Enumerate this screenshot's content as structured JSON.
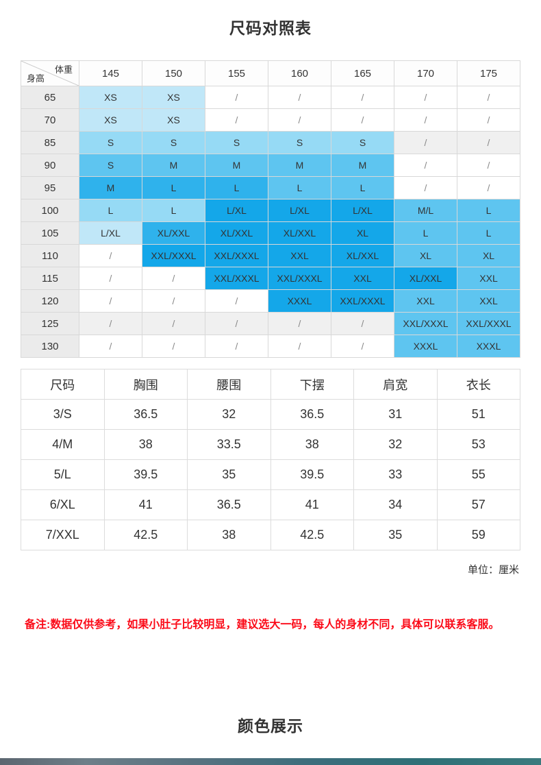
{
  "page": {
    "title1": "尺码对照表",
    "title2": "颜色展示",
    "unit_note": "单位：厘米",
    "remark": "备注:数据仅供参考，如果小肚子比较明显，建议选大一码，每人的身材不同，具体可以联系客服。"
  },
  "colors": {
    "w": "#ffffff",
    "g": "#f0f0f0",
    "b1": "#c0e7f8",
    "b2": "#96daf5",
    "b3": "#5ec5f0",
    "b4": "#2fb2ec",
    "b5": "#14a7e9",
    "remark_red": "#fb0a18"
  },
  "size_matrix": {
    "corner": {
      "top_right": "体重",
      "bottom_left": "身高"
    },
    "weight_headers": [
      "145",
      "150",
      "155",
      "160",
      "165",
      "170",
      "175"
    ],
    "rows": [
      {
        "h": "65",
        "cells": [
          [
            "XS",
            "b1"
          ],
          [
            "XS",
            "b1"
          ],
          [
            "/",
            "w"
          ],
          [
            "/",
            "w"
          ],
          [
            "/",
            "w"
          ],
          [
            "/",
            "w"
          ],
          [
            "/",
            "w"
          ]
        ]
      },
      {
        "h": "70",
        "cells": [
          [
            "XS",
            "b1"
          ],
          [
            "XS",
            "b1"
          ],
          [
            "/",
            "w"
          ],
          [
            "/",
            "w"
          ],
          [
            "/",
            "w"
          ],
          [
            "/",
            "w"
          ],
          [
            "/",
            "w"
          ]
        ]
      },
      {
        "h": "85",
        "cells": [
          [
            "S",
            "b2"
          ],
          [
            "S",
            "b2"
          ],
          [
            "S",
            "b2"
          ],
          [
            "S",
            "b2"
          ],
          [
            "S",
            "b2"
          ],
          [
            "/",
            "g"
          ],
          [
            "/",
            "g"
          ]
        ]
      },
      {
        "h": "90",
        "cells": [
          [
            "S",
            "b3"
          ],
          [
            "M",
            "b3"
          ],
          [
            "M",
            "b3"
          ],
          [
            "M",
            "b3"
          ],
          [
            "M",
            "b3"
          ],
          [
            "/",
            "w"
          ],
          [
            "/",
            "w"
          ]
        ]
      },
      {
        "h": "95",
        "cells": [
          [
            "M",
            "b4"
          ],
          [
            "L",
            "b4"
          ],
          [
            "L",
            "b4"
          ],
          [
            "L",
            "b3"
          ],
          [
            "L",
            "b3"
          ],
          [
            "/",
            "w"
          ],
          [
            "/",
            "w"
          ]
        ]
      },
      {
        "h": "100",
        "cells": [
          [
            "L",
            "b2"
          ],
          [
            "L",
            "b2"
          ],
          [
            "L/XL",
            "b5"
          ],
          [
            "L/XL",
            "b5"
          ],
          [
            "L/XL",
            "b5"
          ],
          [
            "M/L",
            "b3"
          ],
          [
            "L",
            "b3"
          ]
        ]
      },
      {
        "h": "105",
        "cells": [
          [
            "L/XL",
            "b1"
          ],
          [
            "XL/XXL",
            "b4"
          ],
          [
            "XL/XXL",
            "b5"
          ],
          [
            "XL/XXL",
            "b5"
          ],
          [
            "XL",
            "b5"
          ],
          [
            "L",
            "b3"
          ],
          [
            "L",
            "b3"
          ]
        ]
      },
      {
        "h": "110",
        "cells": [
          [
            "/",
            "w"
          ],
          [
            "XXL/XXXL",
            "b5"
          ],
          [
            "XXL/XXXL",
            "b5"
          ],
          [
            "XXL",
            "b5"
          ],
          [
            "XL/XXL",
            "b5"
          ],
          [
            "XL",
            "b3"
          ],
          [
            "XL",
            "b3"
          ]
        ]
      },
      {
        "h": "115",
        "cells": [
          [
            "/",
            "w"
          ],
          [
            "/",
            "w"
          ],
          [
            "XXL/XXXL",
            "b5"
          ],
          [
            "XXL/XXXL",
            "b5"
          ],
          [
            "XXL",
            "b5"
          ],
          [
            "XL/XXL",
            "b5"
          ],
          [
            "XXL",
            "b3"
          ]
        ]
      },
      {
        "h": "120",
        "cells": [
          [
            "/",
            "w"
          ],
          [
            "/",
            "w"
          ],
          [
            "/",
            "w"
          ],
          [
            "XXXL",
            "b5"
          ],
          [
            "XXL/XXXL",
            "b5"
          ],
          [
            "XXL",
            "b3"
          ],
          [
            "XXL",
            "b3"
          ]
        ]
      },
      {
        "h": "125",
        "cells": [
          [
            "/",
            "g"
          ],
          [
            "/",
            "g"
          ],
          [
            "/",
            "g"
          ],
          [
            "/",
            "g"
          ],
          [
            "/",
            "g"
          ],
          [
            "XXL/XXXL",
            "b3"
          ],
          [
            "XXL/XXXL",
            "b3"
          ]
        ]
      },
      {
        "h": "130",
        "cells": [
          [
            "/",
            "w"
          ],
          [
            "/",
            "w"
          ],
          [
            "/",
            "w"
          ],
          [
            "/",
            "w"
          ],
          [
            "/",
            "w"
          ],
          [
            "XXXL",
            "b3"
          ],
          [
            "XXXL",
            "b3"
          ]
        ]
      }
    ]
  },
  "measurements": {
    "headers": [
      "尺码",
      "胸围",
      "腰围",
      "下摆",
      "肩宽",
      "衣长"
    ],
    "rows": [
      [
        "3/S",
        "36.5",
        "32",
        "36.5",
        "31",
        "51"
      ],
      [
        "4/M",
        "38",
        "33.5",
        "38",
        "32",
        "53"
      ],
      [
        "5/L",
        "39.5",
        "35",
        "39.5",
        "33",
        "55"
      ],
      [
        "6/XL",
        "41",
        "36.5",
        "41",
        "34",
        "57"
      ],
      [
        "7/XXL",
        "42.5",
        "38",
        "42.5",
        "35",
        "59"
      ]
    ]
  }
}
